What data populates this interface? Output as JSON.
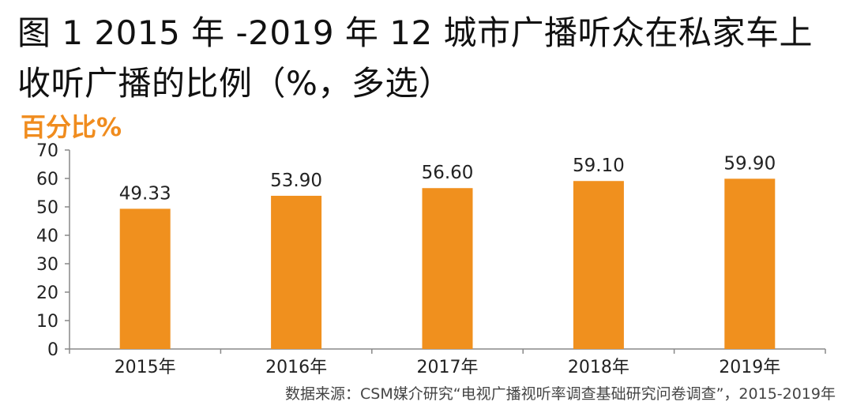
{
  "title_line1": "图 1 2015 年 -2019 年 12 城市广播听众在私家车上",
  "title_line2": "收听广播的比例（%，多选）",
  "unit_label": "百分比%",
  "source": "数据来源：CSM媒介研究“电视广播视听率调查基础研究问卷调查”，2015-2019年",
  "colors": {
    "bar": "#f0901e",
    "axis": "#888888",
    "unit": "#f08c1e"
  },
  "chart_data": {
    "type": "bar",
    "categories": [
      "2015年",
      "2016年",
      "2017年",
      "2018年",
      "2019年"
    ],
    "values": [
      49.33,
      53.9,
      56.6,
      59.1,
      59.9
    ],
    "value_labels": [
      "49.33",
      "53.90",
      "56.60",
      "59.10",
      "59.90"
    ],
    "ylim": [
      0,
      70
    ],
    "yticks": [
      0,
      10,
      20,
      30,
      40,
      50,
      60,
      70
    ],
    "grid": false,
    "ylabel": "百分比%"
  }
}
